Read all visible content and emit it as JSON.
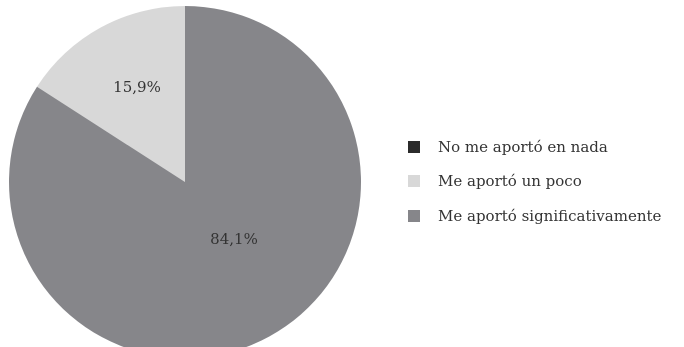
{
  "chart_data": {
    "type": "pie",
    "title": "",
    "slices": [
      {
        "label": "No me aportó en nada",
        "value": 0,
        "display": "",
        "color": "#2b2b2b"
      },
      {
        "label": "Me aportó un poco",
        "value": 15.9,
        "display": "15,9%",
        "color": "#d8d8d8"
      },
      {
        "label": "Me aportó significativamente",
        "value": 84.1,
        "display": "84,1%",
        "color": "#86868a"
      }
    ],
    "start": "top",
    "direction": "counterclockwise",
    "legend_position": "right"
  }
}
